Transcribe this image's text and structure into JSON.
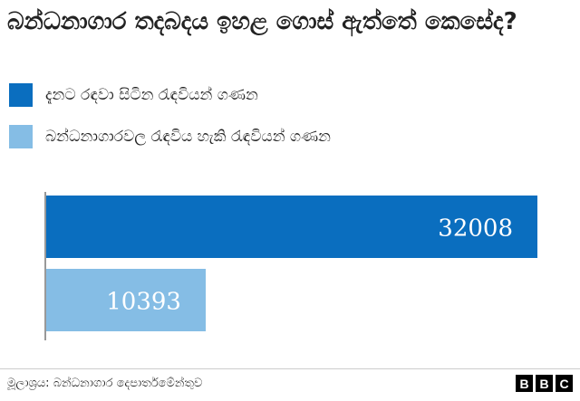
{
  "title": "බන්ධනාගාර තදබදය ඉහළ ගොස් ඇත්තේ කෙසේද?",
  "source": "මූලාශ්‍රය: බන්ධනාගාර දෙපාර්තමේන්තුව",
  "logo": [
    "B",
    "B",
    "C"
  ],
  "colors": {
    "dark_blue": "#0a6ebf",
    "light_blue": "#85bde5",
    "axis": "#999999",
    "text": "#222222"
  },
  "chart_data": {
    "type": "bar",
    "orientation": "horizontal",
    "categories": [
      "දැනට රඳවා සිටින රැඳවියන් ගණන",
      "බන්ධනාගාරවල රැඳවිය හැකි රැඳවියන් ගණන"
    ],
    "values": [
      32008,
      10393
    ],
    "colors": [
      "#0a6ebf",
      "#85bde5"
    ],
    "data_labels": [
      "32008",
      "10393"
    ],
    "legend": "top-left",
    "grid": false
  }
}
